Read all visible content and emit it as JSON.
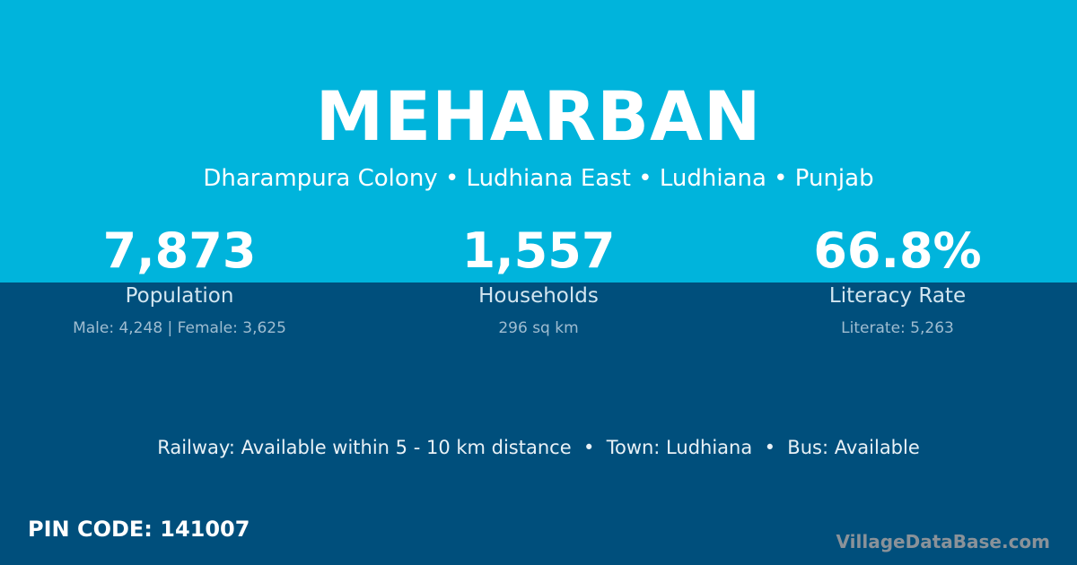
{
  "colors": {
    "top_band": "#00b4dc",
    "bottom_band": "#004f7c",
    "watermark": "#8a9299"
  },
  "title": "MEHARBAN",
  "subtitle": "Dharampura Colony • Ludhiana East • Ludhiana • Punjab",
  "stats": [
    {
      "value": "7,873",
      "label": "Population",
      "sub": "Male: 4,248 | Female: 3,625"
    },
    {
      "value": "1,557",
      "label": "Households",
      "sub": "296 sq km"
    },
    {
      "value": "66.8%",
      "label": "Literacy Rate",
      "sub": "Literate: 5,263"
    }
  ],
  "amenities": "Railway: Available within 5 - 10 km distance  •  Town: Ludhiana  •  Bus: Available",
  "pin": "PIN CODE: 141007",
  "brand": "VillageDataBase.com"
}
